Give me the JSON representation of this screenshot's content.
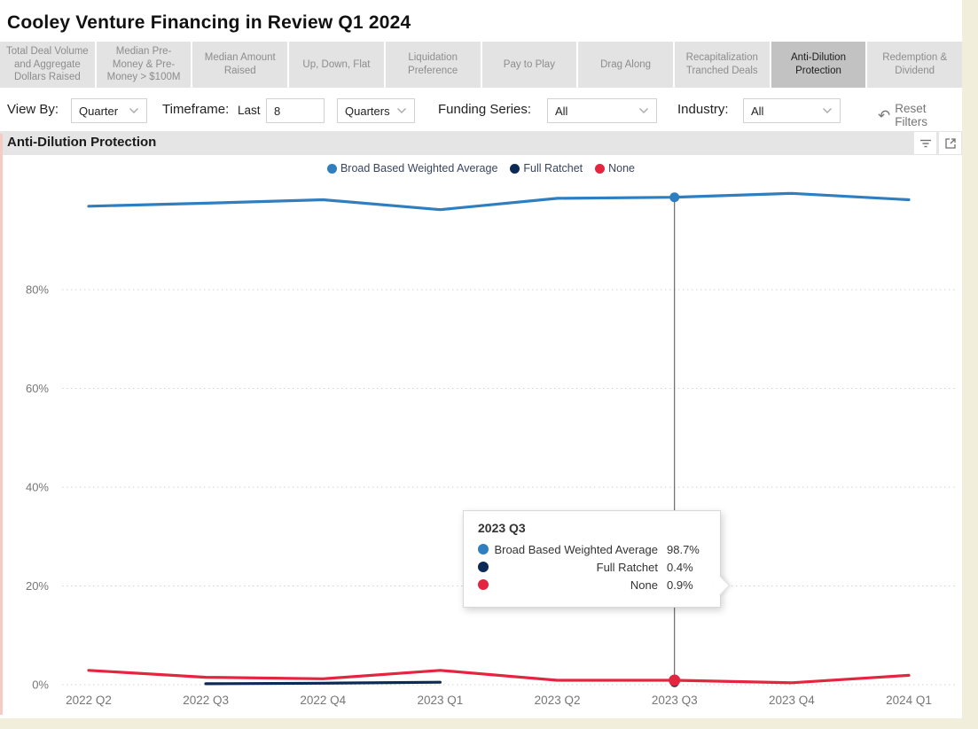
{
  "page": {
    "title": "Cooley Venture Financing in Review Q1 2024"
  },
  "tabs": {
    "items": [
      {
        "label": "Total Deal Volume and Aggregate Dollars Raised",
        "active": false
      },
      {
        "label": "Median Pre-Money & Pre-Money > $100M",
        "active": false
      },
      {
        "label": "Median Amount Raised",
        "active": false
      },
      {
        "label": "Up, Down, Flat",
        "active": false
      },
      {
        "label": "Liquidation Preference",
        "active": false
      },
      {
        "label": "Pay to Play",
        "active": false
      },
      {
        "label": "Drag Along",
        "active": false
      },
      {
        "label": "Recapitalization Tranched Deals",
        "active": false
      },
      {
        "label": "Anti-Dilution Protection",
        "active": true
      },
      {
        "label": "Redemption & Dividend",
        "active": false
      }
    ]
  },
  "filters": {
    "view_by_label": "View By:",
    "view_by_value": "Quarter",
    "timeframe_label": "Timeframe:",
    "last_label": "Last",
    "last_value": "8",
    "unit_value": "Quarters",
    "funding_series_label": "Funding Series:",
    "funding_series_value": "All",
    "industry_label": "Industry:",
    "industry_value": "All",
    "reset_label": "Reset Filters"
  },
  "section": {
    "title": "Anti-Dilution Protection"
  },
  "legend": {
    "items": [
      {
        "label": "Broad Based Weighted Average",
        "color": "#2f7ec0"
      },
      {
        "label": "Full Ratchet",
        "color": "#0d2a56"
      },
      {
        "label": "None",
        "color": "#e32540"
      }
    ]
  },
  "tooltip": {
    "title": "2023 Q3",
    "rows": [
      {
        "label": "Broad Based Weighted Average",
        "value": "98.7%",
        "color": "#2f7ec0"
      },
      {
        "label": "Full Ratchet",
        "value": "0.4%",
        "color": "#0d2a56"
      },
      {
        "label": "None",
        "value": "0.9%",
        "color": "#e32540"
      }
    ]
  },
  "chart_data": {
    "type": "line",
    "title": "Anti-Dilution Protection",
    "categories": [
      "2022 Q2",
      "2022 Q3",
      "2022 Q4",
      "2023 Q1",
      "2023 Q2",
      "2023 Q3",
      "2023 Q4",
      "2024 Q1"
    ],
    "series": [
      {
        "name": "Broad Based Weighted Average",
        "color": "#2f7ec0",
        "values": [
          96.9,
          97.5,
          98.2,
          96.2,
          98.5,
          98.7,
          99.5,
          98.2
        ]
      },
      {
        "name": "Full Ratchet",
        "color": "#0d2a56",
        "values": [
          null,
          0.2,
          0.3,
          0.5,
          null,
          0.4,
          null,
          null
        ]
      },
      {
        "name": "None",
        "color": "#e32540",
        "values": [
          2.9,
          1.5,
          1.2,
          2.9,
          0.9,
          0.9,
          0.4,
          1.9
        ]
      }
    ],
    "xlabel": "",
    "ylabel": "",
    "ylim": [
      0,
      100
    ],
    "yticks": [
      0,
      20,
      40,
      60,
      80
    ],
    "ytick_format": "percent",
    "grid": true,
    "legend_position": "top-center",
    "highlight_category": "2023 Q3",
    "highlight_values": {
      "Broad Based Weighted Average": 98.7,
      "Full Ratchet": 0.4,
      "None": 0.9
    }
  },
  "colors": {
    "tab_active_bg": "#c2c2c2",
    "tab_inactive_bg": "#e3e3e3",
    "section_header_bg": "#e5e5e5",
    "axis_text": "#767676",
    "ruler_line": "#4d4d4d",
    "canvas_edge": "#f1eedc"
  }
}
